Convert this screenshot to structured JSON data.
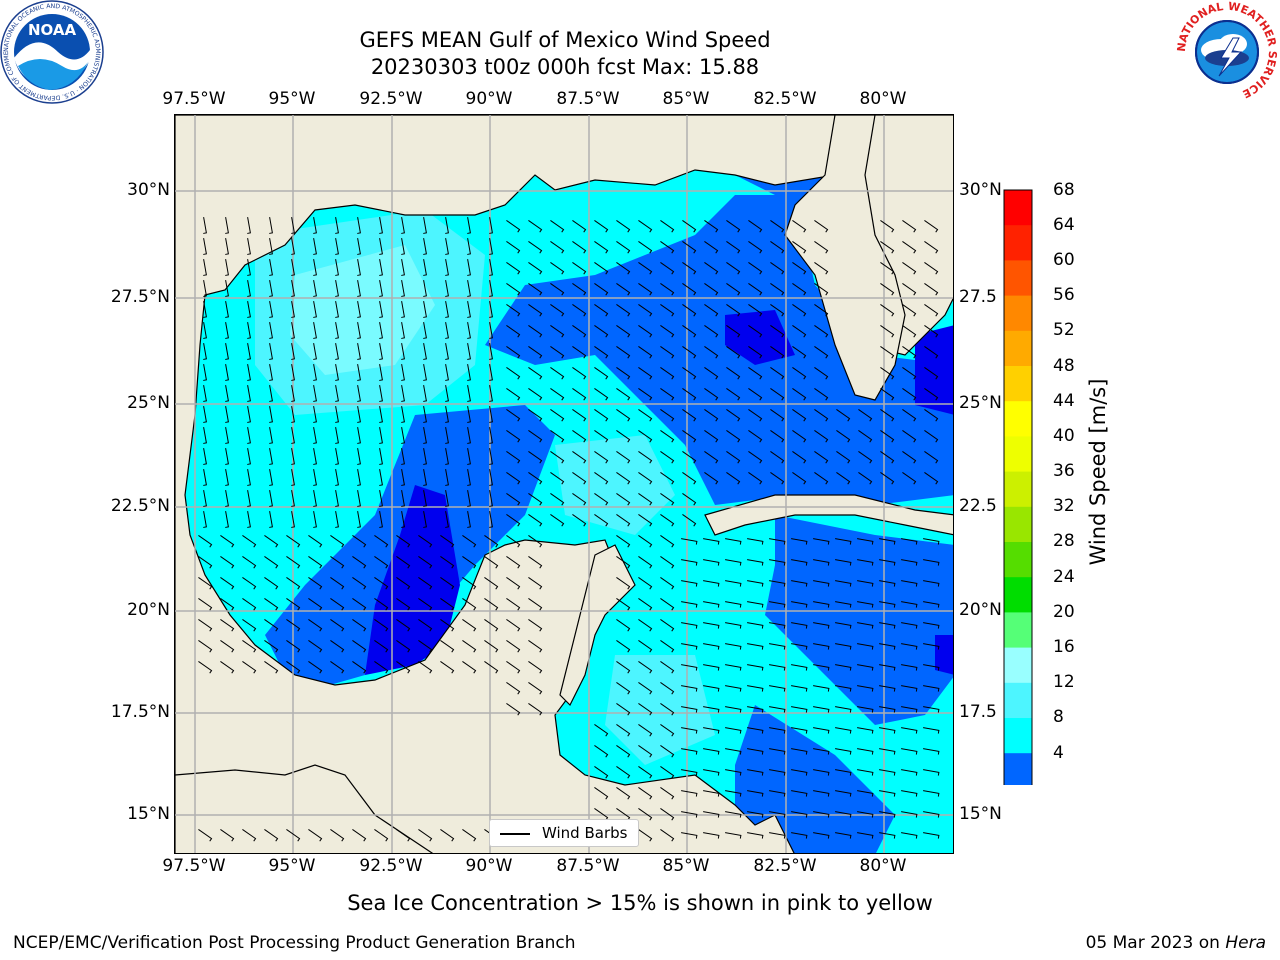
{
  "title_line1": "GEFS MEAN Gulf of Mexico Wind Speed",
  "title_line2": "20230303 t00z 000h fcst   Max: 15.88",
  "lon_ticks": [
    "97.5°W",
    "95°W",
    "92.5°W",
    "90°W",
    "87.5°W",
    "85°W",
    "82.5°W",
    "80°W"
  ],
  "lat_ticks_left": [
    "30°N",
    "27.5°N",
    "25°N",
    "22.5°N",
    "20°N",
    "17.5°N",
    "15°N"
  ],
  "lat_ticks_right": [
    "30°N",
    "27.5",
    "25°N",
    "22.5",
    "20°N",
    "17.5",
    "15°N"
  ],
  "legend_label": "Wind Barbs",
  "colorbar": {
    "label": "Wind Speed [m/s]",
    "ticks": [
      "68",
      "64",
      "60",
      "56",
      "52",
      "48",
      "44",
      "40",
      "36",
      "32",
      "28",
      "24",
      "20",
      "16",
      "12",
      "8",
      "4"
    ],
    "colors": [
      "#0000ee",
      "#0066ff",
      "#00ffff",
      "#4df5ff",
      "#99ffff",
      "#55ff77",
      "#00dd00",
      "#55dd00",
      "#99e600",
      "#ccf000",
      "#eeff00",
      "#ffff00",
      "#ffd000",
      "#ffaa00",
      "#ff8800",
      "#ff5500",
      "#ff2200",
      "#ff0000"
    ]
  },
  "caption": "Sea Ice Concentration > 15% is shown in pink to yellow",
  "footer_left": "NCEP/EMC/Verification Post Processing Product Generation Branch",
  "footer_date": "05 Mar 2023 on ",
  "footer_machine": "Hera",
  "noaa_logo_text": "NOAA",
  "noaa_ring_text": "NATIONAL OCEANIC AND ATMOSPHERIC ADMINISTRATION · U.S. DEPARTMENT OF COMMERCE",
  "nws_ring_text": "NATIONAL WEATHER SERVICE",
  "colors": {
    "land": "#efecdc",
    "grid": "#b0b0b0",
    "wind_lightest": "#99ffff",
    "wind_light": "#4df5ff",
    "wind_cyan": "#00ffff",
    "wind_blue": "#0066ff",
    "wind_dark": "#0000ee"
  }
}
